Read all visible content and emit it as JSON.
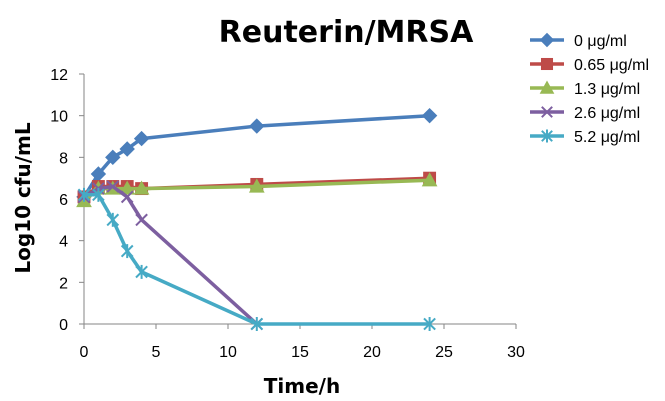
{
  "chart_data": {
    "type": "line",
    "title": "Reuterin/MRSA",
    "xlabel": "Time/h",
    "ylabel": "Log10 cfu/mL",
    "xlim": [
      0,
      30
    ],
    "ylim": [
      0,
      12
    ],
    "x_ticks": [
      "0",
      "5",
      "10",
      "15",
      "20",
      "25",
      "30"
    ],
    "y_ticks": [
      "0",
      "2",
      "4",
      "6",
      "8",
      "10",
      "12"
    ],
    "grid": false,
    "legend_position": "right",
    "series": [
      {
        "name": "0 μg/ml",
        "color": "#4a7ebb",
        "marker": "diamond",
        "x": [
          0,
          1,
          2,
          3,
          4,
          12,
          24
        ],
        "y": [
          6.1,
          7.2,
          8.0,
          8.4,
          8.9,
          9.5,
          10.0
        ]
      },
      {
        "name": "0.65 μg/ml",
        "color": "#be4b48",
        "marker": "square",
        "x": [
          0,
          1,
          2,
          3,
          4,
          12,
          24
        ],
        "y": [
          6.1,
          6.6,
          6.6,
          6.6,
          6.5,
          6.7,
          7.0
        ]
      },
      {
        "name": "1.3 μg/ml",
        "color": "#98b954",
        "marker": "triangle",
        "x": [
          0,
          1,
          2,
          3,
          4,
          12,
          24
        ],
        "y": [
          5.9,
          6.5,
          6.5,
          6.5,
          6.5,
          6.6,
          6.9
        ]
      },
      {
        "name": "2.6 μg/ml",
        "color": "#7d5fa0",
        "marker": "x",
        "x": [
          0,
          1,
          2,
          3,
          4,
          12,
          24
        ],
        "y": [
          6.1,
          6.5,
          6.6,
          6.1,
          5.0,
          0.0,
          null
        ]
      },
      {
        "name": "5.2 μg/ml",
        "color": "#46aac5",
        "marker": "asterisk",
        "x": [
          0,
          1,
          2,
          3,
          4,
          12,
          24
        ],
        "y": [
          6.2,
          6.2,
          5.0,
          3.5,
          2.5,
          0.0,
          0.0
        ]
      }
    ]
  }
}
